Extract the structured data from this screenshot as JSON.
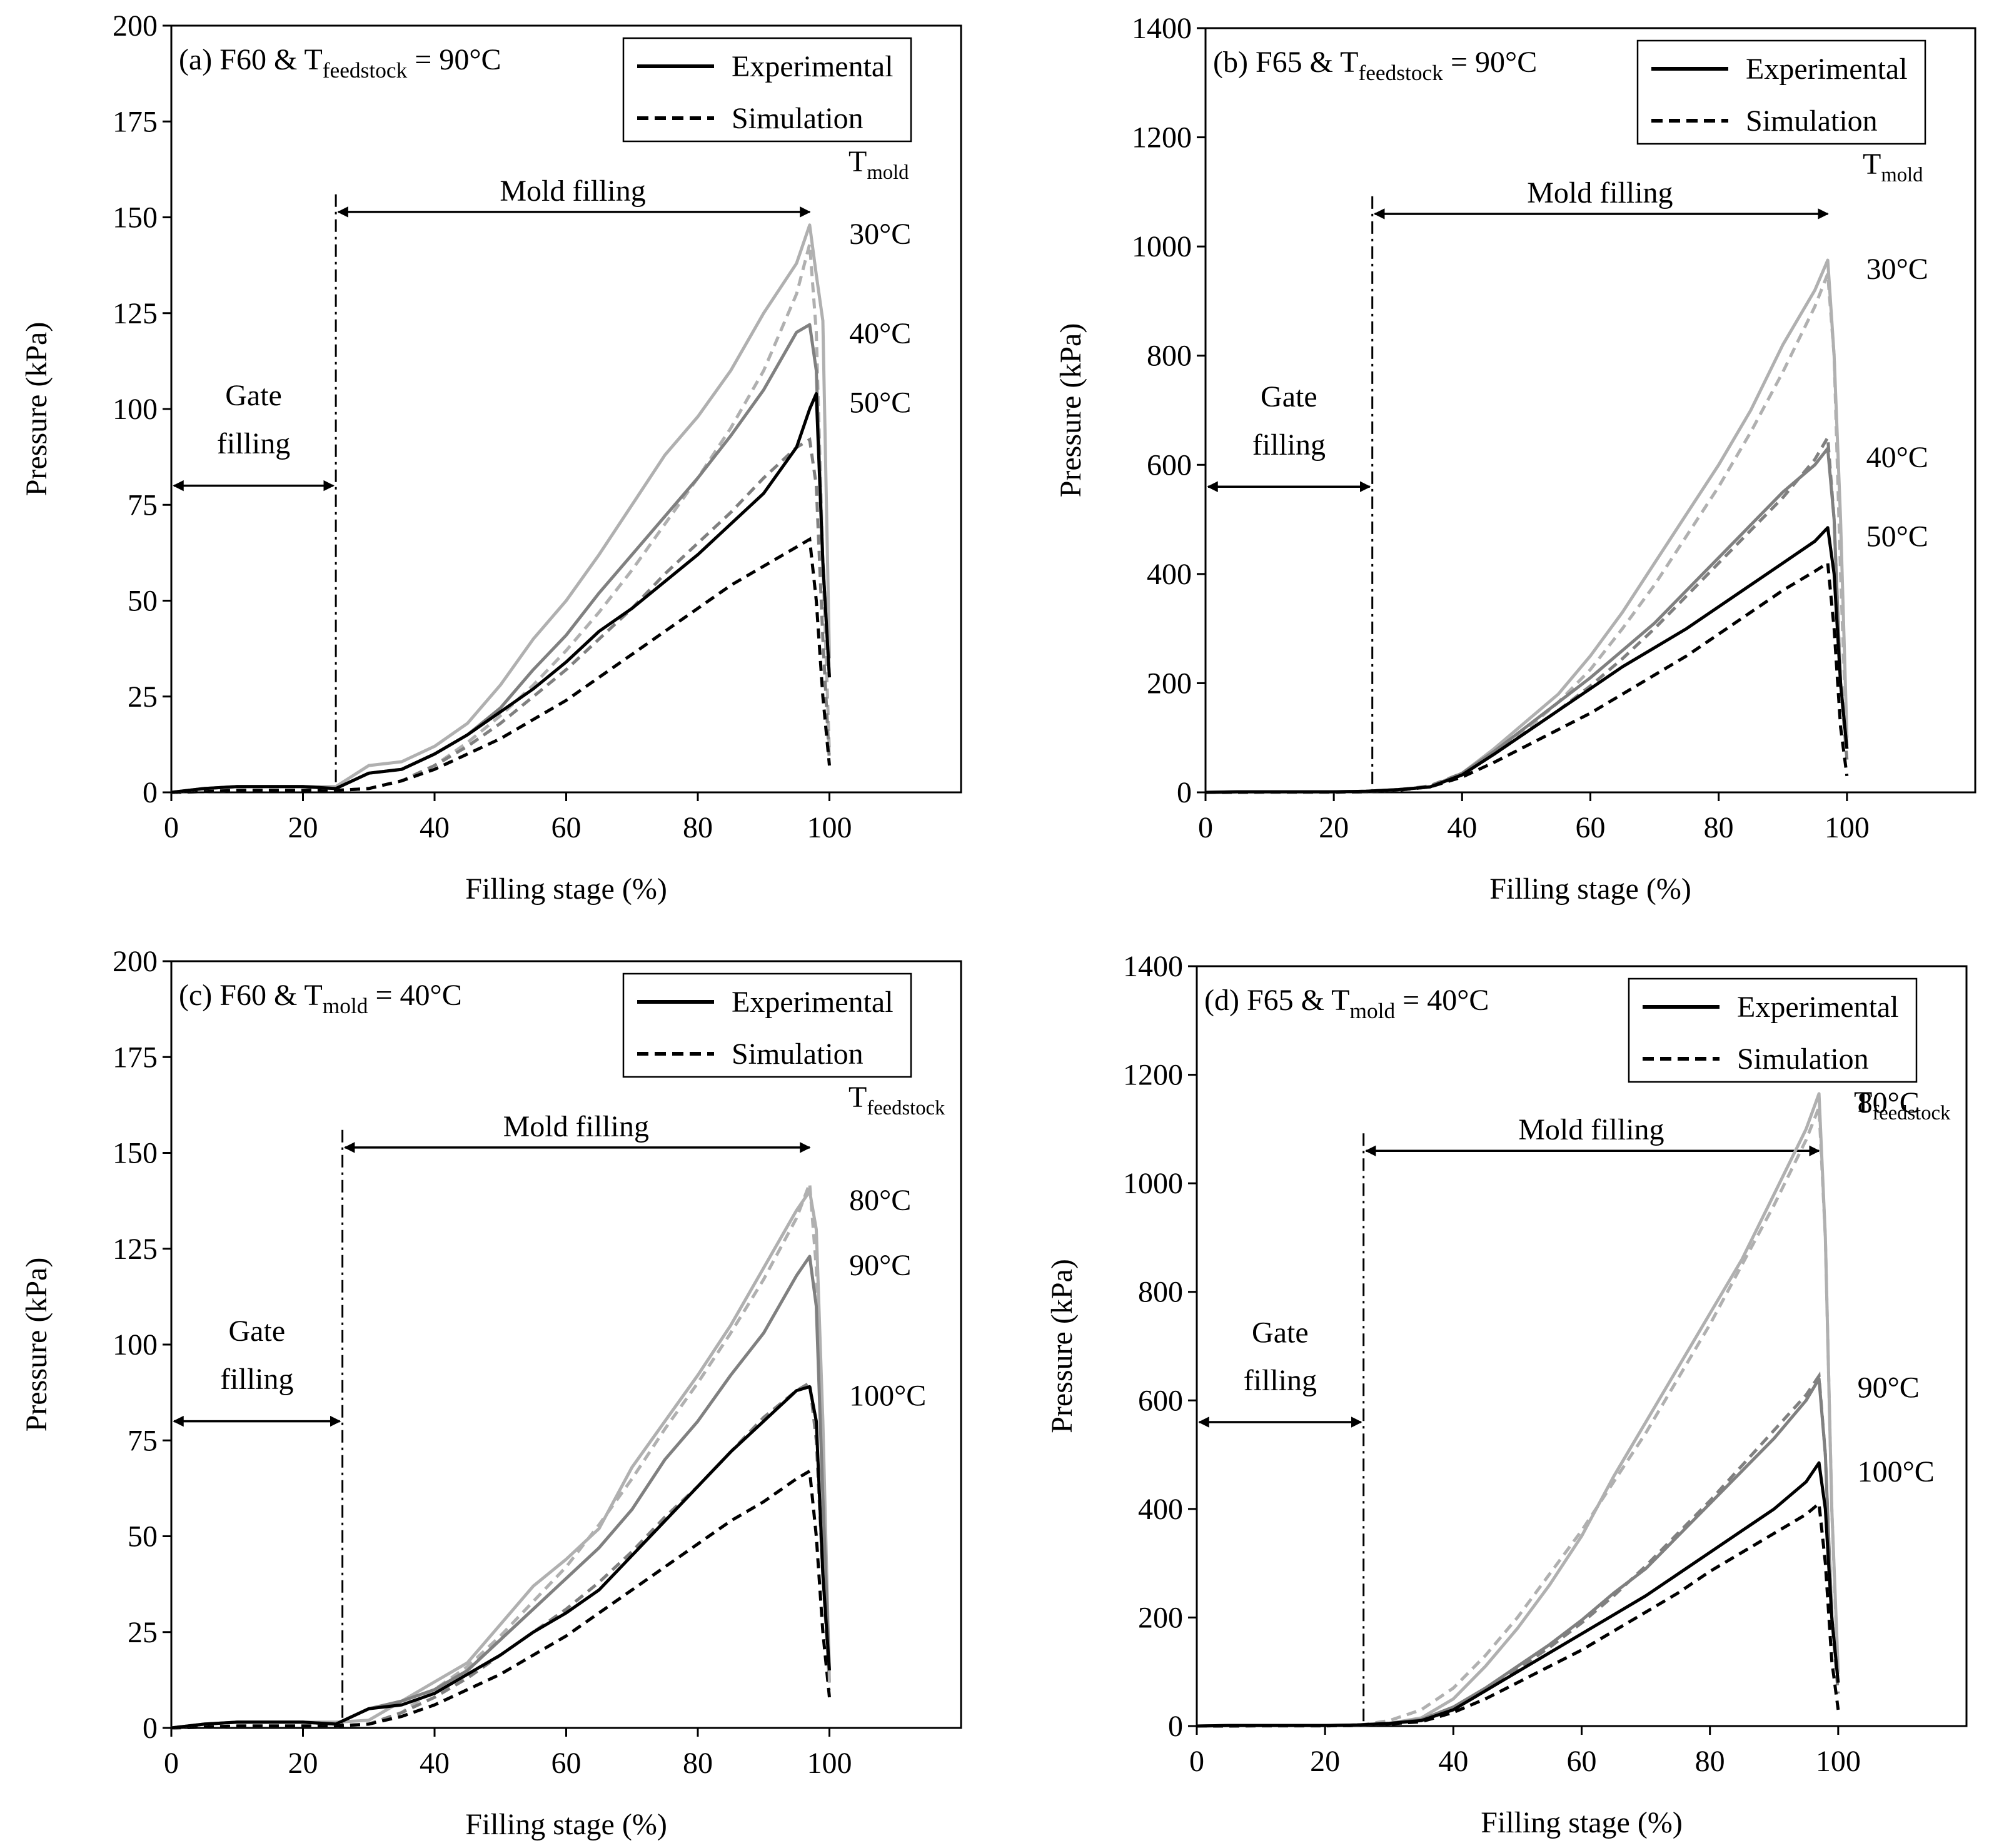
{
  "chart_data": [
    {
      "type": "line",
      "title": {
        "prefix": "(a) F60 & T",
        "subscript": "feedstock",
        "suffix": " = 90°C"
      },
      "x_label": "Filling stage (%)",
      "y_label": "Pressure (kPa)",
      "xlim": [
        0,
        120
      ],
      "xticks": [
        0,
        20,
        40,
        60,
        80,
        100
      ],
      "ylim": [
        0,
        200
      ],
      "yticks": [
        0,
        25,
        50,
        75,
        100,
        125,
        150,
        175,
        200
      ],
      "legend": [
        {
          "name": "Experimental",
          "color": "#000000",
          "dash": false
        },
        {
          "name": "Simulation",
          "color": "#000000",
          "dash": true
        }
      ],
      "legend_title": {
        "prefix": "T",
        "subscript": "mold"
      },
      "annotations": {
        "gate": {
          "text": [
            "Gate",
            "filling"
          ],
          "x": [
            0,
            25
          ]
        },
        "mold": {
          "text": "Mold filling",
          "x": [
            25,
            97
          ]
        }
      },
      "x": [
        0,
        5,
        10,
        15,
        20,
        25,
        30,
        35,
        40,
        45,
        50,
        55,
        60,
        65,
        70,
        75,
        80,
        85,
        90,
        95,
        97,
        98,
        99,
        100
      ],
      "series": [
        {
          "name": "30°C",
          "color": "#b0b0b0",
          "values": [
            0,
            1,
            1.5,
            1.5,
            1.5,
            1.5,
            7,
            8,
            12,
            18,
            28,
            40,
            50,
            62,
            75,
            88,
            98,
            110,
            125,
            138,
            148,
            135,
            123,
            35
          ],
          "simulation": [
            0,
            0.2,
            0.5,
            0.5,
            0.5,
            0.5,
            1,
            3,
            7,
            13,
            20,
            28,
            37,
            47,
            58,
            70,
            82,
            95,
            110,
            130,
            143,
            120,
            60,
            10
          ]
        },
        {
          "name": "40°C",
          "color": "#808080",
          "values": [
            0,
            1,
            1.5,
            1.5,
            1.5,
            1,
            5,
            6,
            10,
            15,
            22,
            32,
            41,
            52,
            62,
            72,
            82,
            93,
            105,
            120,
            122,
            110,
            60,
            30
          ],
          "simulation": [
            0,
            0.2,
            0.5,
            0.5,
            0.5,
            0.5,
            1,
            3,
            7,
            12,
            18,
            25,
            32,
            40,
            48,
            57,
            65,
            73,
            82,
            90,
            92,
            80,
            40,
            8
          ]
        },
        {
          "name": "50°C",
          "color": "#000000",
          "values": [
            0,
            1,
            1.5,
            1.5,
            1.5,
            1,
            5,
            6,
            10,
            15,
            21,
            27,
            34,
            42,
            48,
            55,
            62,
            70,
            78,
            90,
            100,
            104,
            60,
            30
          ],
          "simulation": [
            0,
            0.2,
            0.5,
            0.5,
            0.5,
            0.5,
            1,
            3,
            6,
            10,
            14,
            19,
            24,
            30,
            36,
            42,
            48,
            54,
            59,
            64,
            66,
            50,
            25,
            7
          ]
        }
      ]
    },
    {
      "type": "line",
      "title": {
        "prefix": "(b) F65 & T",
        "subscript": "feedstock",
        "suffix": " = 90°C"
      },
      "x_label": "Filling stage (%)",
      "y_label": "Pressure (kPa)",
      "xlim": [
        0,
        120
      ],
      "xticks": [
        0,
        20,
        40,
        60,
        80,
        100
      ],
      "ylim": [
        0,
        1400
      ],
      "yticks": [
        0,
        200,
        400,
        600,
        800,
        1000,
        1200,
        1400
      ],
      "legend": [
        {
          "name": "Experimental",
          "color": "#000000",
          "dash": false
        },
        {
          "name": "Simulation",
          "color": "#000000",
          "dash": true
        }
      ],
      "legend_title": {
        "prefix": "T",
        "subscript": "mold"
      },
      "annotations": {
        "gate": {
          "text": [
            "Gate",
            "filling"
          ],
          "x": [
            0,
            26
          ]
        },
        "mold": {
          "text": "Mold filling",
          "x": [
            26,
            97
          ]
        }
      },
      "x": [
        0,
        5,
        10,
        15,
        20,
        25,
        30,
        35,
        40,
        45,
        50,
        55,
        60,
        65,
        70,
        75,
        80,
        85,
        90,
        95,
        97,
        98,
        99,
        100
      ],
      "series": [
        {
          "name": "30°C",
          "color": "#b0b0b0",
          "values": [
            0,
            1,
            1,
            1,
            1,
            2,
            5,
            10,
            35,
            80,
            130,
            180,
            250,
            330,
            420,
            510,
            600,
            700,
            820,
            920,
            975,
            800,
            500,
            100
          ],
          "simulation": [
            0,
            0,
            0.5,
            0.5,
            0.5,
            1,
            4,
            12,
            35,
            70,
            115,
            165,
            225,
            300,
            380,
            470,
            560,
            660,
            770,
            890,
            950,
            800,
            400,
            80
          ]
        },
        {
          "name": "40°C",
          "color": "#808080",
          "values": [
            0,
            1,
            1,
            1,
            1,
            2,
            5,
            10,
            35,
            75,
            120,
            165,
            210,
            260,
            310,
            370,
            430,
            490,
            550,
            600,
            630,
            500,
            200,
            80
          ],
          "simulation": [
            0,
            0,
            0.5,
            0.5,
            0.5,
            1,
            4,
            12,
            35,
            70,
            110,
            150,
            195,
            245,
            300,
            360,
            420,
            480,
            540,
            610,
            650,
            500,
            200,
            60
          ]
        },
        {
          "name": "50°C",
          "color": "#000000",
          "values": [
            0,
            1,
            1,
            1,
            1,
            2,
            5,
            10,
            32,
            70,
            110,
            150,
            190,
            230,
            265,
            300,
            340,
            380,
            420,
            460,
            485,
            400,
            200,
            80
          ],
          "simulation": [
            0,
            0,
            0.5,
            0.5,
            0.5,
            1,
            4,
            10,
            28,
            55,
            85,
            115,
            145,
            180,
            215,
            250,
            290,
            330,
            370,
            405,
            420,
            300,
            120,
            30
          ]
        }
      ]
    },
    {
      "type": "line",
      "title": {
        "prefix": "(c) F60 & T",
        "subscript": "mold",
        "suffix": " = 40°C"
      },
      "x_label": "Filling stage (%)",
      "y_label": "Pressure (kPa)",
      "xlim": [
        0,
        120
      ],
      "xticks": [
        0,
        20,
        40,
        60,
        80,
        100
      ],
      "ylim": [
        0,
        200
      ],
      "yticks": [
        0,
        25,
        50,
        75,
        100,
        125,
        150,
        175,
        200
      ],
      "legend": [
        {
          "name": "Experimental",
          "color": "#000000",
          "dash": false
        },
        {
          "name": "Simulation",
          "color": "#000000",
          "dash": true
        }
      ],
      "legend_title": {
        "prefix": "T",
        "subscript": "feedstock"
      },
      "annotations": {
        "gate": {
          "text": [
            "Gate",
            "filling"
          ],
          "x": [
            0,
            26
          ]
        },
        "mold": {
          "text": "Mold filling",
          "x": [
            26,
            97
          ]
        }
      },
      "x": [
        0,
        5,
        10,
        15,
        20,
        25,
        30,
        35,
        40,
        45,
        50,
        55,
        60,
        65,
        70,
        75,
        80,
        85,
        90,
        95,
        97,
        98,
        99,
        100
      ],
      "series": [
        {
          "name": "80°C",
          "color": "#b0b0b0",
          "values": [
            0,
            1,
            1.5,
            1.5,
            1.5,
            1.5,
            2,
            7,
            12,
            17,
            27,
            37,
            44,
            52,
            68,
            80,
            92,
            105,
            120,
            135,
            140,
            130,
            80,
            12
          ],
          "simulation": [
            0,
            0.2,
            0.5,
            0.5,
            0.5,
            0.5,
            1,
            4,
            10,
            16,
            24,
            33,
            42,
            53,
            65,
            78,
            90,
            103,
            117,
            133,
            142,
            120,
            60,
            10
          ]
        },
        {
          "name": "90°C",
          "color": "#808080",
          "values": [
            0,
            1,
            1.5,
            1.5,
            1.5,
            1,
            5,
            7,
            10,
            15,
            23,
            31,
            39,
            47,
            57,
            70,
            80,
            92,
            103,
            118,
            123,
            110,
            60,
            15
          ],
          "simulation": [
            0,
            0.2,
            0.5,
            0.5,
            0.5,
            0.5,
            1,
            4,
            8,
            13,
            19,
            25,
            31,
            38,
            46,
            55,
            63,
            72,
            81,
            88,
            90,
            75,
            40,
            12
          ]
        },
        {
          "name": "100°C",
          "color": "#000000",
          "values": [
            0,
            1,
            1.5,
            1.5,
            1.5,
            1,
            5,
            6,
            9,
            14,
            19,
            25,
            30,
            36,
            45,
            54,
            63,
            72,
            80,
            88,
            89,
            80,
            40,
            15
          ],
          "simulation": [
            0,
            0.2,
            0.5,
            0.5,
            0.5,
            0.5,
            1,
            3,
            6,
            10,
            14,
            19,
            24,
            30,
            36,
            42,
            48,
            54,
            59,
            65,
            67,
            50,
            25,
            8
          ]
        }
      ]
    },
    {
      "type": "line",
      "title": {
        "prefix": "(d) F65 & T",
        "subscript": "mold",
        "suffix": " = 40°C"
      },
      "x_label": "Filling stage (%)",
      "y_label": "Pressure (kPa)",
      "xlim": [
        0,
        120
      ],
      "xticks": [
        0,
        20,
        40,
        60,
        80,
        100
      ],
      "ylim": [
        0,
        1400
      ],
      "yticks": [
        0,
        200,
        400,
        600,
        800,
        1000,
        1200,
        1400
      ],
      "legend": [
        {
          "name": "Experimental",
          "color": "#000000",
          "dash": false
        },
        {
          "name": "Simulation",
          "color": "#000000",
          "dash": true
        }
      ],
      "legend_title": {
        "prefix": "T",
        "subscript": "feedstock"
      },
      "annotations": {
        "gate": {
          "text": [
            "Gate",
            "filling"
          ],
          "x": [
            0,
            26
          ]
        },
        "mold": {
          "text": "Mold filling",
          "x": [
            26,
            97
          ]
        }
      },
      "x": [
        0,
        5,
        10,
        15,
        20,
        25,
        30,
        35,
        40,
        45,
        50,
        55,
        60,
        65,
        70,
        75,
        80,
        85,
        90,
        95,
        97,
        98,
        99,
        100
      ],
      "series": [
        {
          "name": "80°C",
          "color": "#b0b0b0",
          "values": [
            0,
            1,
            1,
            1,
            1,
            2,
            5,
            15,
            50,
            110,
            180,
            260,
            350,
            460,
            560,
            660,
            760,
            860,
            980,
            1100,
            1165,
            900,
            400,
            100
          ],
          "simulation": [
            0,
            0,
            0.5,
            0.5,
            0.5,
            1,
            10,
            30,
            70,
            130,
            200,
            280,
            360,
            450,
            540,
            640,
            740,
            850,
            960,
            1080,
            1140,
            900,
            400,
            80
          ]
        },
        {
          "name": "90°C",
          "color": "#808080",
          "values": [
            0,
            1,
            1,
            1,
            1,
            2,
            5,
            12,
            35,
            70,
            110,
            150,
            195,
            245,
            290,
            350,
            410,
            470,
            530,
            600,
            640,
            500,
            200,
            80
          ],
          "simulation": [
            0,
            0,
            0.5,
            0.5,
            0.5,
            1,
            4,
            10,
            30,
            65,
            105,
            145,
            190,
            240,
            295,
            355,
            415,
            480,
            545,
            610,
            645,
            500,
            200,
            60
          ]
        },
        {
          "name": "100°C",
          "color": "#000000",
          "values": [
            0,
            1,
            1,
            1,
            1,
            2,
            5,
            10,
            30,
            65,
            100,
            135,
            170,
            205,
            240,
            280,
            320,
            360,
            400,
            450,
            485,
            400,
            200,
            80
          ],
          "simulation": [
            0,
            0,
            0.5,
            0.5,
            0.5,
            1,
            4,
            8,
            25,
            50,
            80,
            110,
            140,
            175,
            210,
            245,
            285,
            320,
            355,
            390,
            410,
            300,
            120,
            30
          ]
        }
      ]
    }
  ]
}
